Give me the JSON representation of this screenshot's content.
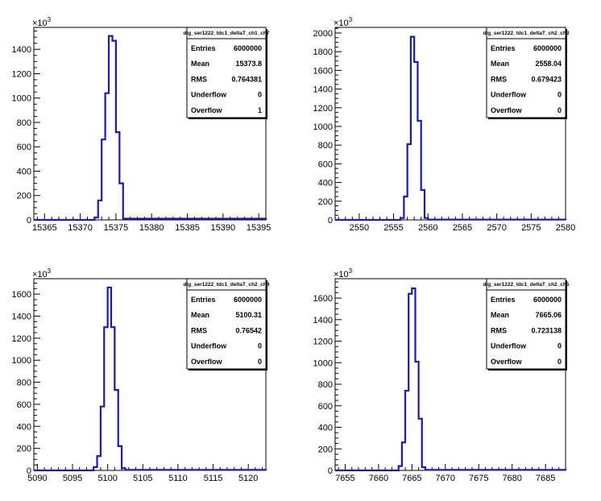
{
  "chart_data": [
    {
      "type": "histogram",
      "title": "dig_ser1222_tdc1_deltaT_ch1_ch7",
      "y_multiplier": "10",
      "y_multiplier_exp": "3",
      "xlim": [
        15363.5,
        15396
      ],
      "ylim": [
        0,
        1580
      ],
      "x_ticks": [
        15365,
        15370,
        15375,
        15380,
        15385,
        15390,
        15395
      ],
      "y_ticks": [
        0,
        200,
        400,
        600,
        800,
        1000,
        1200,
        1400
      ],
      "bin_edges": [
        15363.5,
        15372,
        15372.5,
        15373,
        15373.5,
        15374,
        15374.5,
        15375,
        15375.5,
        15376,
        15396
      ],
      "counts": [
        0,
        20,
        160,
        660,
        1040,
        1510,
        1470,
        720,
        300,
        10,
        0
      ],
      "stats": {
        "entries_label": "Entries",
        "entries": "6000000",
        "mean_label": "Mean",
        "mean": "15373.8",
        "rms_label": "RMS",
        "rms": "0.764381",
        "underflow_label": "Underflow",
        "underflow": "0",
        "overflow_label": "Overflow",
        "overflow": "1"
      }
    },
    {
      "type": "histogram",
      "title": "dig_ser1222_tdc1_deltaT_ch2_ch3",
      "y_multiplier": "10",
      "y_multiplier_exp": "3",
      "xlim": [
        2546.5,
        2580
      ],
      "ylim": [
        0,
        2060
      ],
      "x_ticks": [
        2550,
        2555,
        2560,
        2565,
        2570,
        2575,
        2580
      ],
      "y_ticks": [
        0,
        200,
        400,
        600,
        800,
        1000,
        1200,
        1400,
        1600,
        1800,
        2000
      ],
      "bin_edges": [
        2546.5,
        2556,
        2556.5,
        2557,
        2557.5,
        2558,
        2558.5,
        2559,
        2559.5,
        2560,
        2580
      ],
      "counts": [
        0,
        20,
        250,
        810,
        1960,
        1690,
        1060,
        320,
        20,
        3,
        0
      ],
      "stats": {
        "entries_label": "Entries",
        "entries": "6000000",
        "mean_label": "Mean",
        "mean": "2558.04",
        "rms_label": "RMS",
        "rms": "0.679423",
        "underflow_label": "Underflow",
        "underflow": "0",
        "overflow_label": "Overflow",
        "overflow": "0"
      }
    },
    {
      "type": "histogram",
      "title": "dig_ser1222_tdc1_deltaT_ch2_ch4",
      "y_multiplier": "10",
      "y_multiplier_exp": "3",
      "xlim": [
        5089.5,
        5122.5
      ],
      "ylim": [
        0,
        1740
      ],
      "x_ticks": [
        5090,
        5095,
        5100,
        5105,
        5110,
        5115,
        5120
      ],
      "y_ticks": [
        0,
        200,
        400,
        600,
        800,
        1000,
        1200,
        1400,
        1600
      ],
      "bin_edges": [
        5089.5,
        5098,
        5098.5,
        5099,
        5099.5,
        5100,
        5100.5,
        5101,
        5101.5,
        5102,
        5102.5,
        5122.5
      ],
      "counts": [
        0,
        30,
        130,
        580,
        1300,
        1660,
        1300,
        730,
        220,
        20,
        5,
        0
      ],
      "stats": {
        "entries_label": "Entries",
        "entries": "6000000",
        "mean_label": "Mean",
        "mean": "5100.31",
        "rms_label": "RMS",
        "rms": "0.76542",
        "underflow_label": "Underflow",
        "underflow": "0",
        "overflow_label": "Overflow",
        "overflow": "0"
      }
    },
    {
      "type": "histogram",
      "title": "dig_ser1222_tdc1_deltaT_ch2_ch5",
      "y_multiplier": "10",
      "y_multiplier_exp": "3",
      "xlim": [
        7653.5,
        7688
      ],
      "ylim": [
        0,
        1780
      ],
      "x_ticks": [
        7655,
        7660,
        7665,
        7670,
        7675,
        7680,
        7685
      ],
      "y_ticks": [
        0,
        200,
        400,
        600,
        800,
        1000,
        1200,
        1400,
        1600
      ],
      "bin_edges": [
        7653.5,
        7663,
        7663.5,
        7664,
        7664.5,
        7665,
        7665.5,
        7666,
        7666.5,
        7667,
        7688
      ],
      "counts": [
        0,
        40,
        260,
        740,
        1640,
        1690,
        1010,
        480,
        30,
        5,
        0
      ],
      "stats": {
        "entries_label": "Entries",
        "entries": "6000000",
        "mean_label": "Mean",
        "mean": "7665.06",
        "rms_label": "RMS",
        "rms": "0.723138",
        "underflow_label": "Underflow",
        "underflow": "0",
        "overflow_label": "Overflow",
        "overflow": "0"
      }
    }
  ],
  "colors": {
    "histogram_line": "#1c1ca8",
    "axis": "#000000",
    "background": "#ffffff"
  }
}
